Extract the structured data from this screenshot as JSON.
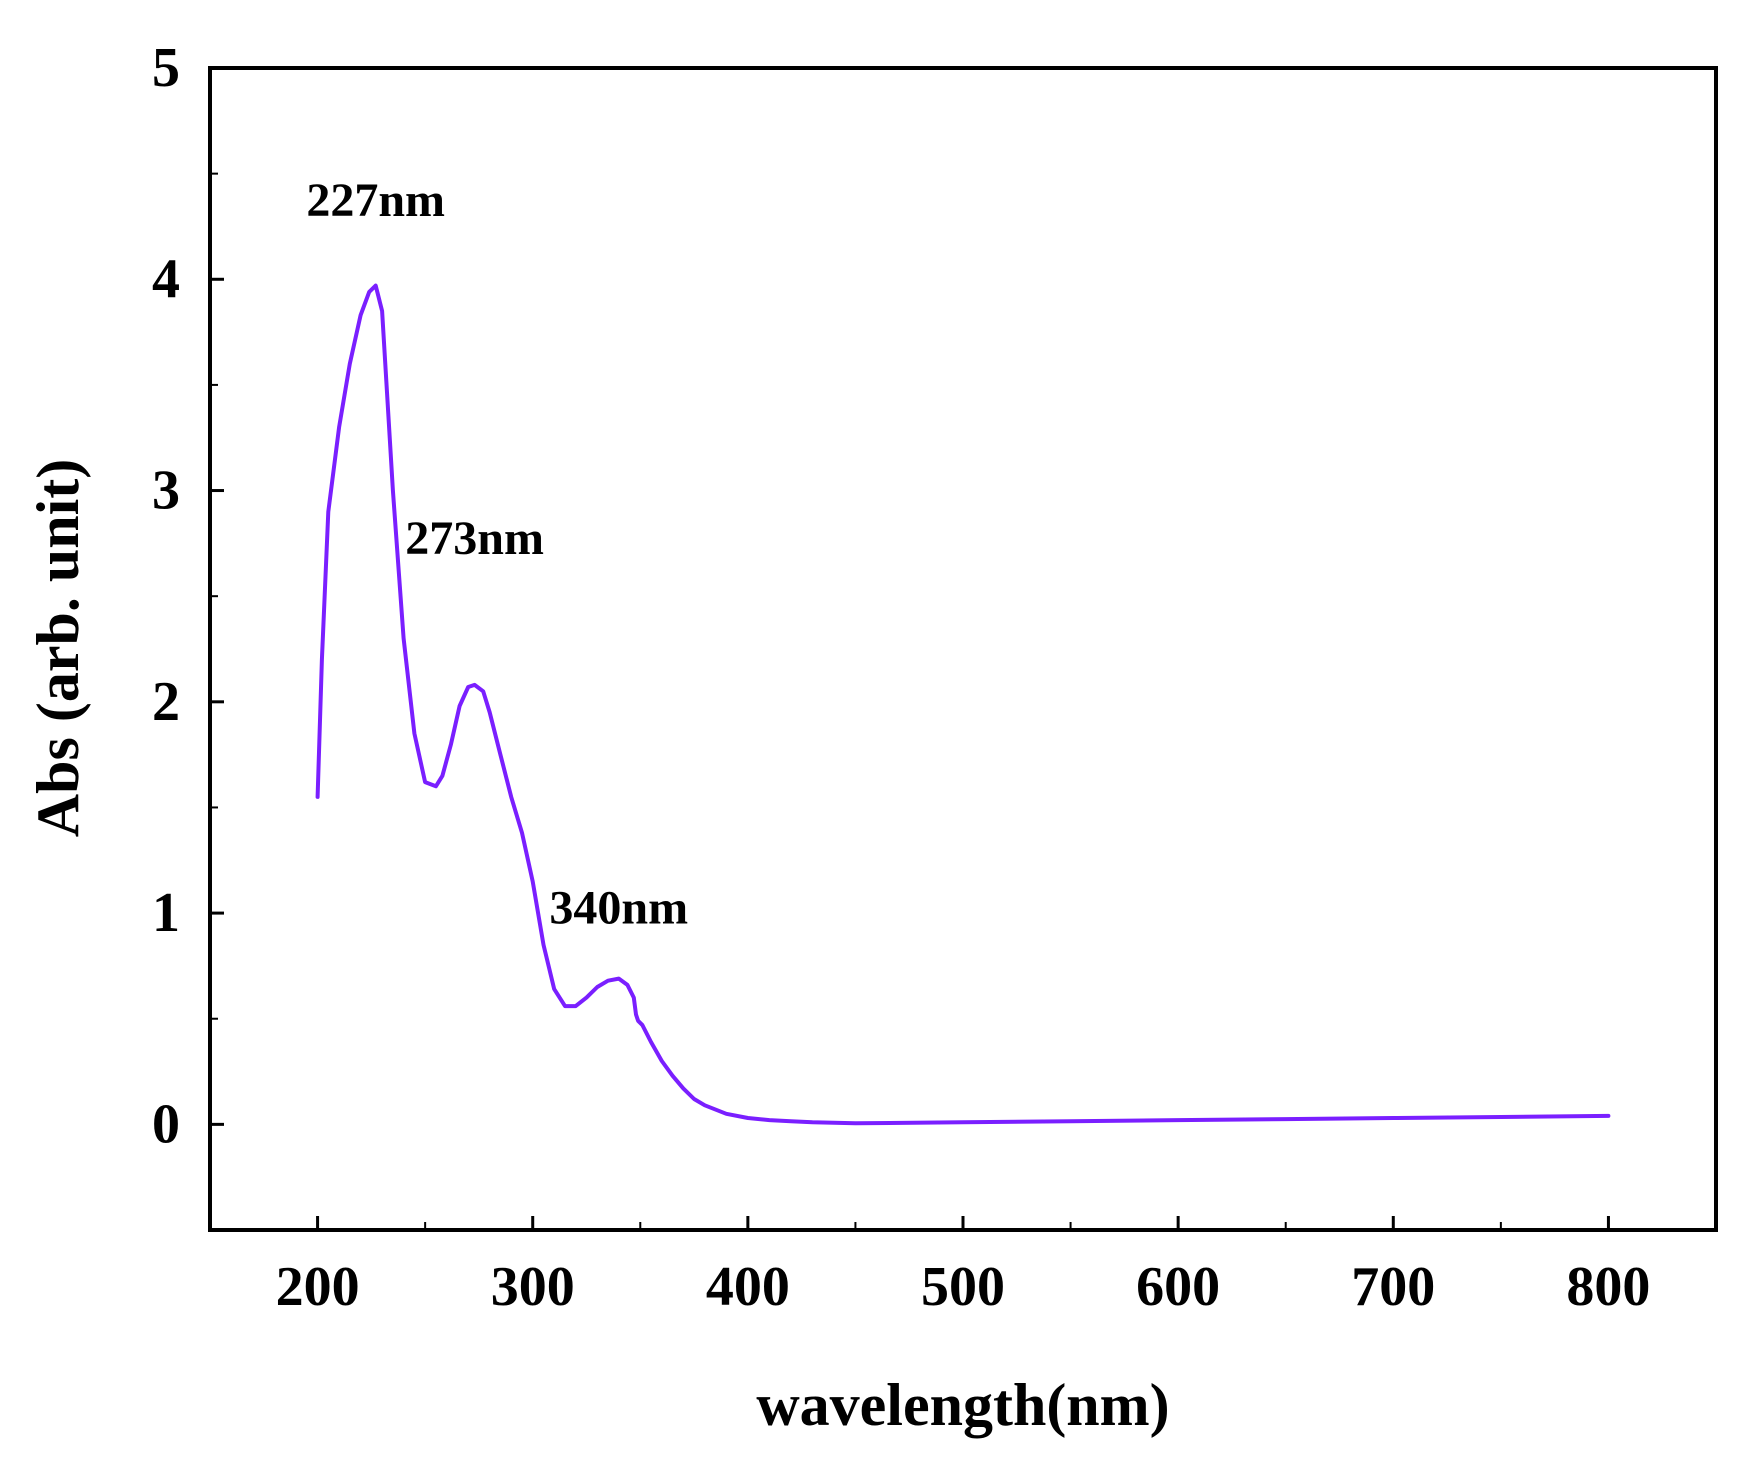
{
  "chart_data": {
    "type": "line",
    "title": "",
    "xlabel": "wavelength(nm)",
    "ylabel": "Abs (arb. unit)",
    "xlim": [
      150,
      850
    ],
    "ylim": [
      -0.5,
      5
    ],
    "x_ticks": [
      200,
      300,
      400,
      500,
      600,
      700,
      800
    ],
    "x_tick_labels": [
      "200",
      "300",
      "400",
      "500",
      "600",
      "700",
      "800"
    ],
    "y_ticks": [
      0,
      1,
      2,
      3,
      4,
      5
    ],
    "y_tick_labels": [
      "0",
      "1",
      "2",
      "3",
      "4",
      "5"
    ],
    "grid": false,
    "line_color": "#7a1fff",
    "series": [
      {
        "name": "Abs",
        "x": [
          200,
          202,
          205,
          210,
          215,
          220,
          224,
          227,
          230,
          235,
          240,
          245,
          250,
          255,
          258,
          262,
          266,
          270,
          273,
          277,
          280,
          285,
          290,
          295,
          300,
          305,
          310,
          315,
          320,
          325,
          330,
          335,
          340,
          344,
          347,
          348,
          349,
          351,
          355,
          360,
          365,
          370,
          375,
          380,
          390,
          400,
          410,
          420,
          430,
          450,
          500,
          550,
          600,
          650,
          700,
          750,
          800
        ],
        "y": [
          1.55,
          2.2,
          2.9,
          3.3,
          3.6,
          3.83,
          3.94,
          3.97,
          3.85,
          3.0,
          2.3,
          1.85,
          1.62,
          1.6,
          1.65,
          1.8,
          1.98,
          2.07,
          2.08,
          2.05,
          1.95,
          1.75,
          1.55,
          1.38,
          1.15,
          0.85,
          0.64,
          0.56,
          0.56,
          0.6,
          0.65,
          0.68,
          0.69,
          0.66,
          0.6,
          0.52,
          0.49,
          0.47,
          0.39,
          0.3,
          0.23,
          0.17,
          0.12,
          0.09,
          0.05,
          0.03,
          0.02,
          0.015,
          0.01,
          0.005,
          0.01,
          0.015,
          0.02,
          0.025,
          0.03,
          0.035,
          0.04
        ]
      }
    ],
    "annotations": [
      {
        "text": "227nm",
        "x": 227,
        "y": 4.3
      },
      {
        "text": "273nm",
        "x": 273,
        "y": 2.7
      },
      {
        "text": "340nm",
        "x": 340,
        "y": 0.95
      }
    ]
  }
}
